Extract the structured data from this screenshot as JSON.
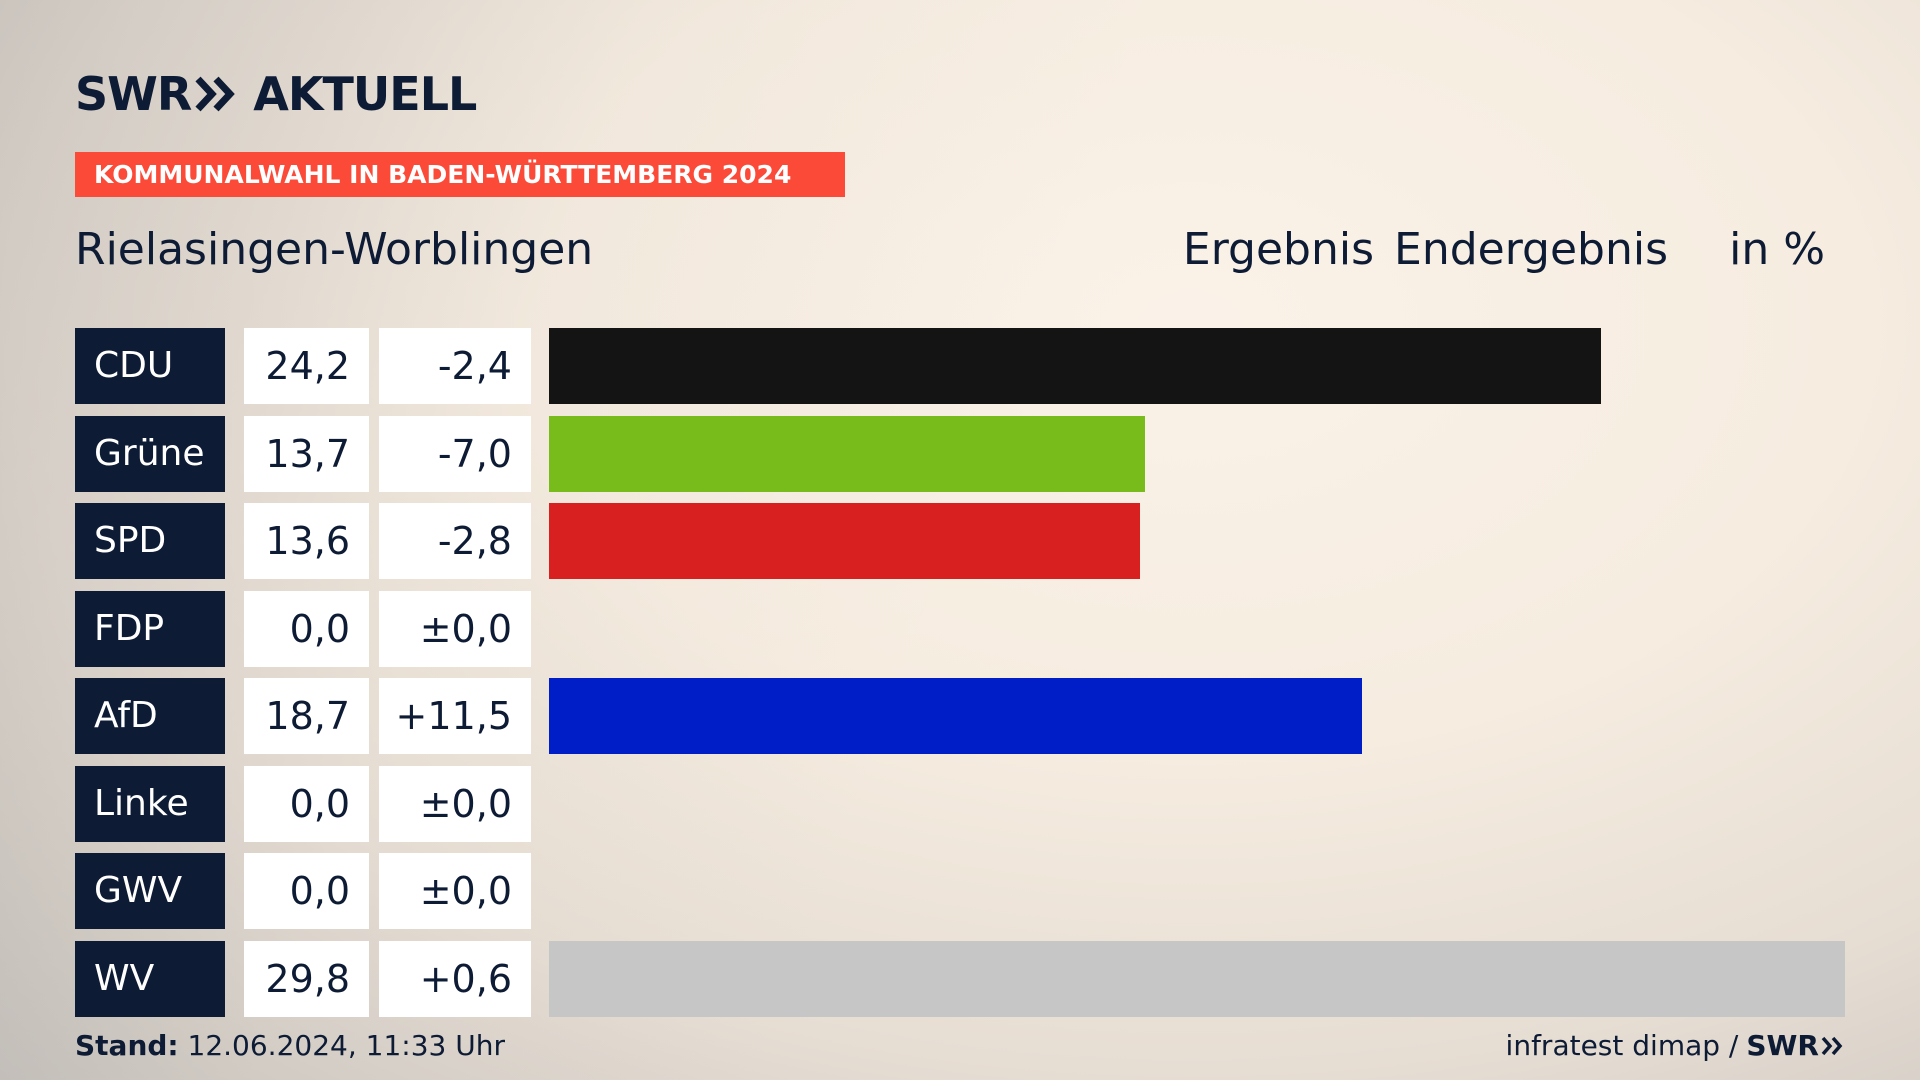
{
  "logo": {
    "left_text": "SWR",
    "right_text": "AKTUELL"
  },
  "banner": "KOMMUNALWAHL IN BADEN-WÜRTTEMBERG 2024",
  "place": "Rielasingen-Worblingen",
  "headers": {
    "result": "Ergebnis",
    "status": "Endergebnis",
    "unit": "in %"
  },
  "footer": {
    "stand_label": "Stand:",
    "stand_value": " 12.06.2024, 11:33 Uhr",
    "source": "infratest dimap /",
    "brand": "SWR"
  },
  "colors": {
    "navy": "#0d1b35",
    "banner": "#fb4a38"
  },
  "chart_data": {
    "type": "bar",
    "orientation": "horizontal",
    "categories": [
      "CDU",
      "Grüne",
      "SPD",
      "FDP",
      "AfD",
      "Linke",
      "GWV",
      "WV"
    ],
    "values": [
      24.2,
      13.7,
      13.6,
      0.0,
      18.7,
      0.0,
      0.0,
      29.8
    ],
    "value_labels": [
      "24,2",
      "13,7",
      "13,6",
      "0,0",
      "18,7",
      "0,0",
      "0,0",
      "29,8"
    ],
    "diff_labels": [
      "-2,4",
      "-7,0",
      "-2,8",
      "±0,0",
      "+11,5",
      "±0,0",
      "±0,0",
      "+0,6"
    ],
    "bar_colors": [
      "#141414",
      "#78bc1b",
      "#d7201f",
      "#f6d900",
      "#001ec8",
      "#b52568",
      "#8c8c8c",
      "#c6c6c6"
    ],
    "xlim": [
      0,
      29.8
    ]
  }
}
